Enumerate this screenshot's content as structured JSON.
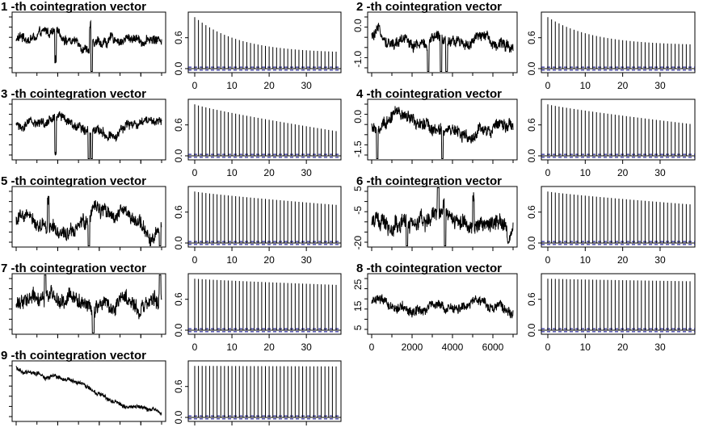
{
  "chart_data": [
    {
      "type": "line",
      "title": "1 -th cointegration vector",
      "x_ticks": [
        "0",
        "2000",
        "4000",
        "6000"
      ],
      "y_ticks": [],
      "x_ticks_visible": false,
      "series_shape": {
        "base": 0.55,
        "amp": 0.35,
        "trend": 0.0,
        "noise": 0.6,
        "spikes": [
          [
            0.27,
            -0.55
          ],
          [
            0.52,
            -0.8
          ],
          [
            0.51,
            0.35
          ]
        ]
      }
    },
    {
      "type": "bar",
      "subtype": "acf",
      "title": "",
      "lags": {
        "min": 0,
        "max": 38
      },
      "x_ticks": [
        "0",
        "10",
        "20",
        "30"
      ],
      "y_ticks": [
        "0.0",
        "0.6"
      ],
      "ylim": [
        0,
        1.05
      ],
      "acf_end": 0.3,
      "decay": "exponential",
      "ci": 0.03,
      "x_ticks_visible": true
    },
    {
      "type": "line",
      "title": "2 -th cointegration vector",
      "x_ticks": [
        "0",
        "2000",
        "4000",
        "6000"
      ],
      "y_ticks": [
        "0.0",
        "-1.0"
      ],
      "ylim": [
        -1.4,
        0.4
      ],
      "x_ticks_visible": false,
      "series_shape": {
        "base": 0.55,
        "amp": 0.35,
        "trend": 0.0,
        "noise": 0.7,
        "spikes": [
          [
            0.4,
            -0.6
          ],
          [
            0.49,
            -0.95
          ],
          [
            0.53,
            -0.7
          ]
        ]
      }
    },
    {
      "type": "bar",
      "subtype": "acf",
      "title": "",
      "lags": {
        "min": 0,
        "max": 38
      },
      "x_ticks": [
        "0",
        "10",
        "20",
        "30"
      ],
      "y_ticks": [
        "0.0",
        "0.6"
      ],
      "ylim": [
        0,
        1.05
      ],
      "acf_end": 0.45,
      "decay": "exponential",
      "ci": 0.03,
      "x_ticks_visible": true
    },
    {
      "type": "line",
      "title": "3 -th cointegration vector",
      "x_ticks": [
        "0",
        "2000",
        "4000",
        "6000"
      ],
      "y_ticks": [],
      "x_ticks_visible": false,
      "series_shape": {
        "base": 0.6,
        "amp": 0.3,
        "trend": 0.0,
        "noise": 0.6,
        "spikes": [
          [
            0.27,
            -0.55
          ],
          [
            0.5,
            -0.9
          ],
          [
            0.52,
            -0.5
          ]
        ]
      }
    },
    {
      "type": "bar",
      "subtype": "acf",
      "title": "",
      "lags": {
        "min": 0,
        "max": 38
      },
      "x_ticks": [
        "0",
        "10",
        "20",
        "30"
      ],
      "y_ticks": [
        "0.0",
        "0.6"
      ],
      "ylim": [
        0,
        1.05
      ],
      "acf_end": 0.48,
      "decay": "linear",
      "ci": 0.03,
      "x_ticks_visible": true
    },
    {
      "type": "line",
      "title": "4 -th cointegration vector",
      "x_ticks": [
        "0",
        "2000",
        "4000",
        "6000"
      ],
      "y_ticks": [
        "0.0",
        "-1.5"
      ],
      "ylim": [
        -2.0,
        0.8
      ],
      "x_ticks_visible": false,
      "series_shape": {
        "base": 0.5,
        "amp": 0.45,
        "trend": 0.0,
        "noise": 0.8,
        "spikes": [
          [
            0.04,
            -0.6
          ],
          [
            0.5,
            -0.85
          ]
        ]
      }
    },
    {
      "type": "bar",
      "subtype": "acf",
      "title": "",
      "lags": {
        "min": 0,
        "max": 38
      },
      "x_ticks": [
        "0",
        "10",
        "20",
        "30"
      ],
      "y_ticks": [
        "0.0",
        "0.6"
      ],
      "ylim": [
        0,
        1.05
      ],
      "acf_end": 0.62,
      "decay": "linear",
      "ci": 0.03,
      "x_ticks_visible": true
    },
    {
      "type": "line",
      "title": "5 -th cointegration vector",
      "x_ticks": [
        "0",
        "2000",
        "4000",
        "6000"
      ],
      "y_ticks": [],
      "x_ticks_visible": false,
      "series_shape": {
        "base": 0.45,
        "amp": 0.55,
        "trend": 0.0,
        "noise": 0.9,
        "spikes": [
          [
            0.22,
            0.5
          ],
          [
            0.5,
            -0.7
          ],
          [
            0.99,
            -0.9
          ]
        ]
      }
    },
    {
      "type": "bar",
      "subtype": "acf",
      "title": "",
      "lags": {
        "min": 0,
        "max": 38
      },
      "x_ticks": [
        "0",
        "10",
        "20",
        "30"
      ],
      "y_ticks": [
        "0.0",
        "0.6"
      ],
      "ylim": [
        0,
        1.05
      ],
      "acf_end": 0.74,
      "decay": "linear",
      "ci": 0.03,
      "x_ticks_visible": true
    },
    {
      "type": "line",
      "title": "6 -th cointegration vector",
      "x_ticks": [
        "0",
        "2000",
        "4000",
        "6000"
      ],
      "y_ticks": [
        "-5",
        "-20"
      ],
      "y_ticks_extra": [
        "5"
      ],
      "ylim": [
        -22,
        6
      ],
      "x_ticks_visible": false,
      "series_shape": {
        "base": 0.5,
        "amp": 0.6,
        "trend": 0.0,
        "noise": 1.0,
        "spikes": [
          [
            0.25,
            -0.6
          ],
          [
            0.47,
            0.45
          ],
          [
            0.52,
            -0.9
          ],
          [
            0.72,
            0.5
          ]
        ]
      }
    },
    {
      "type": "bar",
      "subtype": "acf",
      "title": "",
      "lags": {
        "min": 0,
        "max": 38
      },
      "x_ticks": [
        "0",
        "10",
        "20",
        "30"
      ],
      "y_ticks": [
        "0.0",
        "0.6"
      ],
      "ylim": [
        0,
        1.05
      ],
      "acf_end": 0.75,
      "decay": "linear",
      "ci": 0.03,
      "x_ticks_visible": true
    },
    {
      "type": "line",
      "title": "7 -th cointegration vector",
      "x_ticks": [
        "0",
        "2000",
        "4000",
        "6000"
      ],
      "y_ticks": [],
      "x_ticks_visible": false,
      "series_shape": {
        "base": 0.5,
        "amp": 0.6,
        "trend": 0.0,
        "noise": 1.0,
        "spikes": [
          [
            0.2,
            0.6
          ],
          [
            0.53,
            -0.85
          ],
          [
            0.99,
            0.55
          ]
        ]
      }
    },
    {
      "type": "bar",
      "subtype": "acf",
      "title": "",
      "lags": {
        "min": 0,
        "max": 38
      },
      "x_ticks": [
        "0",
        "10",
        "20",
        "30"
      ],
      "y_ticks": [
        "0.0",
        "0.6"
      ],
      "ylim": [
        0,
        1.05
      ],
      "acf_end": 0.88,
      "decay": "linear",
      "ci": 0.03,
      "x_ticks_visible": true
    },
    {
      "type": "line",
      "title": "8 -th cointegration vector",
      "x_ticks": [
        "0",
        "2000",
        "4000",
        "6000"
      ],
      "y_ticks": [
        "25",
        "15",
        "5"
      ],
      "ylim": [
        2,
        30
      ],
      "x_ticks_visible": true,
      "series_shape": {
        "base": 0.45,
        "amp": 0.7,
        "trend": 0.0,
        "noise": 0.6,
        "spikes": []
      }
    },
    {
      "type": "bar",
      "subtype": "acf",
      "title": "",
      "lags": {
        "min": 0,
        "max": 38
      },
      "x_ticks": [
        "0",
        "10",
        "20",
        "30"
      ],
      "y_ticks": [
        "0.0",
        "0.6"
      ],
      "ylim": [
        0,
        1.05
      ],
      "acf_end": 0.95,
      "decay": "linear",
      "ci": 0.03,
      "x_ticks_visible": true
    },
    {
      "type": "line",
      "title": "9 -th cointegration vector",
      "x_ticks": [
        "0",
        "2000",
        "4000",
        "6000"
      ],
      "y_ticks": [],
      "x_ticks_visible": false,
      "series_shape": {
        "base": 0.9,
        "amp": 0.2,
        "trend": -0.8,
        "noise": 0.25,
        "spikes": []
      }
    },
    {
      "type": "bar",
      "subtype": "acf",
      "title": "",
      "lags": {
        "min": 0,
        "max": 38
      },
      "x_ticks": [
        "0",
        "10",
        "20",
        "30"
      ],
      "y_ticks": [
        "0.0",
        "0.6"
      ],
      "ylim": [
        0,
        1.05
      ],
      "acf_end": 0.99,
      "decay": "flat",
      "ci": 0.03,
      "x_ticks_visible": false
    }
  ],
  "style": {
    "line": "#000000",
    "ci_line": "#00008b",
    "text": "#000000"
  }
}
